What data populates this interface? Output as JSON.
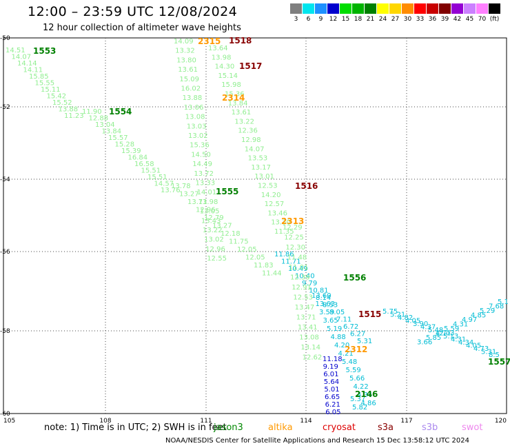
{
  "header": {
    "title": "12:00 – 23:59 UTC 12/08/2024",
    "subtitle": "12 hour collection of altimeter wave heights"
  },
  "legend": {
    "unit": "(ft)",
    "bins": [
      {
        "label": "3",
        "color": "#7f7f7f"
      },
      {
        "label": "6",
        "color": "#00e5ee"
      },
      {
        "label": "9",
        "color": "#1e90ff"
      },
      {
        "label": "12",
        "color": "#0000cd"
      },
      {
        "label": "15",
        "color": "#00dd00"
      },
      {
        "label": "18",
        "color": "#00b400"
      },
      {
        "label": "21",
        "color": "#008000"
      },
      {
        "label": "24",
        "color": "#ffff00"
      },
      {
        "label": "27",
        "color": "#ffd700"
      },
      {
        "label": "30",
        "color": "#ff8c00"
      },
      {
        "label": "33",
        "color": "#ff0000"
      },
      {
        "label": "36",
        "color": "#c80000"
      },
      {
        "label": "39",
        "color": "#800000"
      },
      {
        "label": "42",
        "color": "#9400d3"
      },
      {
        "label": "45",
        "color": "#cc80ff"
      },
      {
        "label": "70",
        "color": "#ff80ff"
      },
      {
        "label": "",
        "color": "#000000"
      }
    ]
  },
  "axes": {
    "lon_labels": [
      "105",
      "108",
      "111",
      "114",
      "117",
      "120"
    ],
    "lat_labels": [
      "-50",
      "-52",
      "-54",
      "-56",
      "-58",
      "-60"
    ]
  },
  "satellite_colors": {
    "jason3": "#008800",
    "altika": "#ff9900",
    "cryosat": "#dd0000",
    "s3a": "#880000",
    "s3b": "#aa88ee",
    "swot": "#ee88ee"
  },
  "tracks": [
    {
      "id": "1553",
      "color": "#90ee90",
      "label_color": "#008000",
      "values": [
        "14.51",
        "14.07",
        "14.14",
        "14.11",
        "15.85",
        "15.55",
        "15.11",
        "15.42",
        "15.52",
        "13.88",
        "11.23"
      ]
    },
    {
      "id": "1554",
      "color": "#90ee90",
      "label_color": "#008000",
      "values": [
        "11.90",
        "12.88",
        "13.04",
        "13.84",
        "15.57",
        "15.28",
        "15.39",
        "16.84",
        "16.58",
        "15.51",
        "15.51",
        "14.57",
        "13.76"
      ]
    },
    {
      "id": "1555",
      "color": "#90ee90",
      "label_color": "#008000",
      "values": [
        "13.78",
        "13.27",
        "13.71",
        "12.96",
        "12.79",
        "13.27",
        "12.18",
        "11.75",
        "12.05",
        "12.05",
        "11.83",
        "11.44"
      ]
    },
    {
      "id": "1556",
      "color": "#00bcd4",
      "label_color": "#008000",
      "values": [
        "11.86",
        "11.71",
        "10.49",
        "10.40",
        "9.79",
        "10.81",
        "8.14",
        "8.53",
        "8.05",
        "7.11",
        "6.72",
        "6.27",
        "5.31"
      ]
    },
    {
      "id": "2315",
      "color": "#90ee90",
      "label_color": "#ff9900",
      "values": [
        "14.09",
        "13.32",
        "13.80",
        "13.61",
        "15.09",
        "16.02",
        "13.88",
        "13.06",
        "13.08",
        "13.03",
        "13.02",
        "15.36",
        "14.50",
        "14.49",
        "13.72",
        "13.33",
        "14.01",
        "13.98",
        "13.05",
        "13.43",
        "13.22",
        "13.02",
        "12.96",
        "12.55"
      ]
    },
    {
      "id": "1518",
      "color": "#90ee90",
      "label_color": "#880000",
      "values": [
        "13.64",
        "13.98",
        "14.30",
        "15.14",
        "15.98",
        "15.36",
        "13.84",
        "13.61",
        "13.22",
        "12.36",
        "12.98",
        "14.07",
        "13.53",
        "13.17",
        "13.01",
        "12.53",
        "14.20",
        "12.57",
        "13.46",
        "13.30",
        "11.35"
      ]
    },
    {
      "id": "1517",
      "color": "#90ee90",
      "label_color": "#880000",
      "values": []
    },
    {
      "id": "1516",
      "color": "#90ee90",
      "label_color": "#880000",
      "values": []
    },
    {
      "id": "2313",
      "color": "#90ee90",
      "label_color": "#ff9900",
      "values": [
        "12.29",
        "12.25",
        "12.30",
        "11.48",
        "11.01",
        "12.39",
        "12.91",
        "12.53",
        "13.47",
        "13.71",
        "13.41",
        "13.08",
        "13.14",
        "12.62"
      ]
    },
    {
      "id": "2314",
      "color": "#90ee90",
      "label_color": "#ff9900",
      "values": []
    },
    {
      "id": "1515",
      "color": "#00bcd4",
      "label_color": "#880000",
      "values": [
        "13.60",
        "13.63",
        "3.59",
        "3.65",
        "5.19",
        "4.88",
        "4.20",
        "4.21",
        "5.48",
        "5.59",
        "5.66",
        "4.22",
        "4.34",
        "4.86"
      ]
    },
    {
      "id": "2312",
      "color": "#0000cd",
      "label_color": "#ff9900",
      "values": [
        "11.18",
        "9.19",
        "6.01",
        "5.64",
        "5.01",
        "6.65",
        "6.21",
        "6.05"
      ]
    },
    {
      "id": "2146",
      "color": "#00bcd4",
      "label_color": "#008000",
      "values": [
        "5.37",
        "5.82"
      ]
    },
    {
      "id": "1557",
      "color": "#00bcd4",
      "label_color": "#008000",
      "values": [
        "5.75",
        "5.21",
        "4.82",
        "4.05",
        "3.90",
        "4.37",
        "5.48",
        "4.71",
        "5.13",
        "4.31",
        "4.34",
        "4.05",
        "4.73",
        "5.31",
        "8.5"
      ]
    },
    {
      "id": "xtrack",
      "color": "#00bcd4",
      "label_color": "#008000",
      "values": [
        "5.1",
        "7.68",
        "5.29",
        "4.85",
        "4.97",
        "4.31",
        "5.59",
        "12.03",
        "5.85",
        "3.66"
      ]
    }
  ],
  "footer": {
    "note": "note:  1) Time is in UTC; 2) SWH is in feet",
    "satellites": [
      {
        "key": "jason3",
        "label": "jason3"
      },
      {
        "key": "altika",
        "label": "altika"
      },
      {
        "key": "cryosat",
        "label": "cryosat"
      },
      {
        "key": "s3a",
        "label": "s3a"
      },
      {
        "key": "s3b",
        "label": "s3b"
      },
      {
        "key": "swot",
        "label": "swot"
      }
    ],
    "credit": "NOAA/NESDIS Center for Satellite Applications and Research    15 Dec 13:58:12 UTC 2024"
  }
}
